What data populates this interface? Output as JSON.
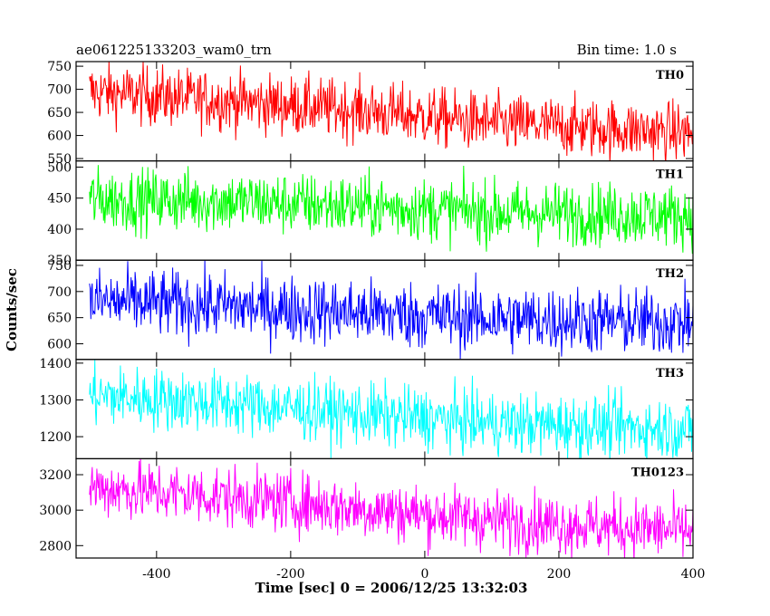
{
  "header": {
    "title": "ae061225133203_wam0_trn",
    "bin_time": "Bin time: 1.0 s"
  },
  "chart_data": {
    "type": "line",
    "xlabel": "Time [sec] 0 = 2006/12/25 13:32:03",
    "ylabel": "Counts/sec",
    "xlim": [
      -520,
      400
    ],
    "xticks": [
      -400,
      -200,
      0,
      200,
      400
    ],
    "x_start": -500,
    "x_end": 400,
    "bin_seconds": 1.0,
    "panels": [
      {
        "name": "TH0",
        "color": "#ff0000",
        "ylim": [
          545,
          760
        ],
        "yticks": [
          550,
          600,
          650,
          700,
          750
        ],
        "trend": [
          [
            -500,
            695
          ],
          [
            -300,
            675
          ],
          [
            -100,
            655
          ],
          [
            100,
            627
          ],
          [
            400,
            605
          ]
        ],
        "noise": 32
      },
      {
        "name": "TH1",
        "color": "#00ff00",
        "ylim": [
          350,
          510
        ],
        "yticks": [
          350,
          400,
          450,
          500
        ],
        "trend": [
          [
            -500,
            448
          ],
          [
            -300,
            445
          ],
          [
            -100,
            437
          ],
          [
            100,
            427
          ],
          [
            400,
            422
          ]
        ],
        "noise": 25
      },
      {
        "name": "TH2",
        "color": "#0000ff",
        "ylim": [
          570,
          760
        ],
        "yticks": [
          600,
          650,
          700,
          750
        ],
        "trend": [
          [
            -500,
            682
          ],
          [
            -300,
            672
          ],
          [
            -100,
            660
          ],
          [
            100,
            648
          ],
          [
            400,
            640
          ]
        ],
        "noise": 32
      },
      {
        "name": "TH3",
        "color": "#00ffff",
        "ylim": [
          1140,
          1410
        ],
        "yticks": [
          1200,
          1300,
          1400
        ],
        "trend": [
          [
            -500,
            1312
          ],
          [
            -300,
            1292
          ],
          [
            -100,
            1262
          ],
          [
            100,
            1237
          ],
          [
            400,
            1220
          ]
        ],
        "noise": 42
      },
      {
        "name": "TH0123",
        "color": "#ff00ff",
        "ylim": [
          2730,
          3290
        ],
        "yticks": [
          2800,
          3000,
          3200
        ],
        "trend": [
          [
            -500,
            3130
          ],
          [
            -300,
            3075
          ],
          [
            -100,
            3010
          ],
          [
            100,
            2945
          ],
          [
            400,
            2880
          ]
        ],
        "noise": 85
      }
    ]
  }
}
